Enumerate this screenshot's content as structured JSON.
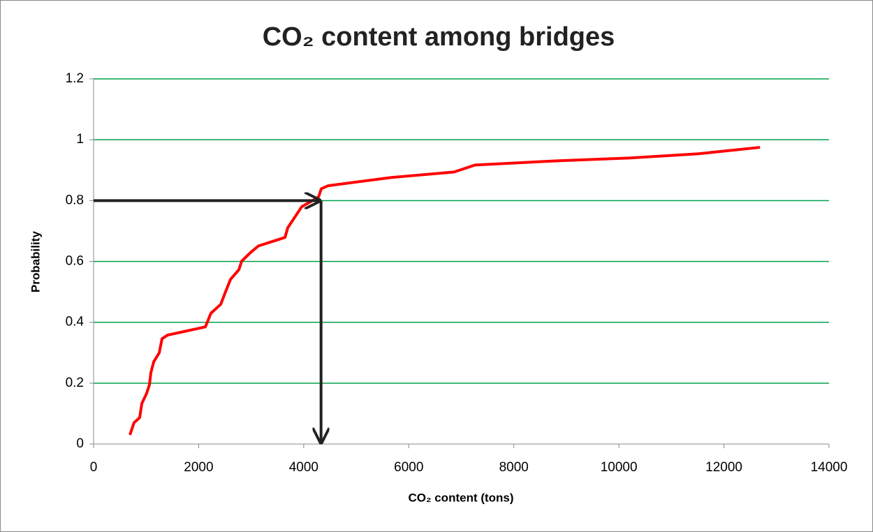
{
  "chart_data": {
    "type": "line",
    "title": "CO₂ content among bridges",
    "xlabel": "CO₂ content (tons)",
    "ylabel": "Probability",
    "x": [
      691,
      770,
      878,
      918,
      1011,
      1064,
      1090,
      1144,
      1250,
      1303,
      1410,
      2128,
      2234,
      2420,
      2500,
      2606,
      2766,
      2819,
      2979,
      3138,
      3644,
      3697,
      3963,
      4149,
      4282,
      4335,
      4468,
      5665,
      6862,
      7261,
      8856,
      10186,
      11516,
      12686
    ],
    "values": [
      0.03,
      0.07,
      0.087,
      0.133,
      0.167,
      0.195,
      0.234,
      0.27,
      0.3,
      0.346,
      0.358,
      0.385,
      0.43,
      0.459,
      0.495,
      0.541,
      0.573,
      0.601,
      0.628,
      0.651,
      0.679,
      0.711,
      0.78,
      0.798,
      0.812,
      0.839,
      0.849,
      0.876,
      0.894,
      0.917,
      0.931,
      0.94,
      0.954,
      0.975
    ],
    "color": "#ff0000",
    "grid": true,
    "grid_color": "#00a04a",
    "reference": {
      "x": 4330,
      "y": 0.8
    },
    "xlim": [
      0,
      14000
    ],
    "xticks": [
      0,
      2000,
      4000,
      6000,
      8000,
      10000,
      12000,
      14000
    ],
    "ylim": [
      0,
      1.2
    ],
    "yticks": [
      0,
      0.2,
      0.4,
      0.6,
      0.8,
      1,
      1.2
    ]
  }
}
